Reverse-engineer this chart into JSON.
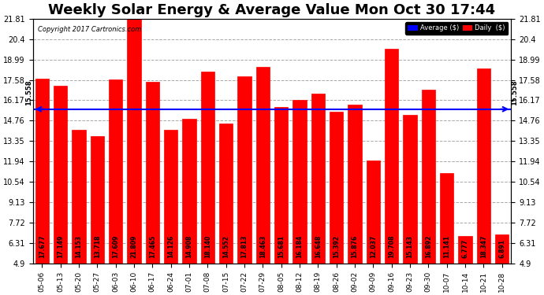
{
  "title": "Weekly Solar Energy & Average Value Mon Oct 30 17:44",
  "copyright": "Copyright 2017 Cartronics.com",
  "categories": [
    "05-06",
    "05-13",
    "05-20",
    "05-27",
    "06-03",
    "06-10",
    "06-17",
    "06-24",
    "07-01",
    "07-08",
    "07-15",
    "07-22",
    "07-29",
    "08-05",
    "08-12",
    "08-19",
    "08-26",
    "09-02",
    "09-09",
    "09-16",
    "09-23",
    "09-30",
    "10-07",
    "10-14",
    "10-21",
    "10-28"
  ],
  "values": [
    17.677,
    17.149,
    14.153,
    13.718,
    17.609,
    21.809,
    17.465,
    14.126,
    14.908,
    18.14,
    14.552,
    17.813,
    18.463,
    15.681,
    16.184,
    16.648,
    15.392,
    15.876,
    12.037,
    19.708,
    15.143,
    16.892,
    11.141,
    6.777,
    18.347,
    6.891
  ],
  "average": 15.558,
  "bar_color": "#ff0000",
  "average_line_color": "#0000ff",
  "ylim": [
    4.9,
    21.81
  ],
  "yticks": [
    4.9,
    6.31,
    7.72,
    9.13,
    10.54,
    11.94,
    13.35,
    14.76,
    16.17,
    17.58,
    18.99,
    20.4,
    21.81
  ],
  "background_color": "#ffffff",
  "grid_color": "#aaaaaa",
  "bar_edge_color": "#cc0000",
  "title_fontsize": 13,
  "legend_avg_color": "#0000ff",
  "legend_daily_color": "#ff0000"
}
